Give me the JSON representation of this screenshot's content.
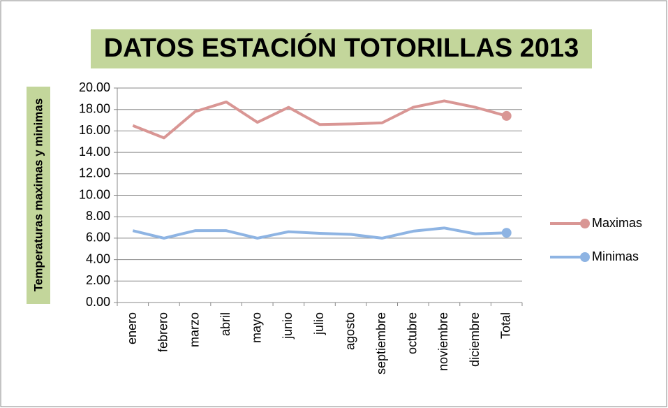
{
  "chart_data": {
    "type": "line",
    "title": "DATOS ESTACIÓN TOTORILLAS 2013",
    "y_label": "Temperaturas maximas y minimas",
    "categories": [
      "enero",
      "febrero",
      "marzo",
      "abril",
      "mayo",
      "junio",
      "julio",
      "agosto",
      "septiembre",
      "octubre",
      "noviembre",
      "diciembre",
      "Total"
    ],
    "series": [
      {
        "name": "Maximas",
        "color": "#d99694",
        "values": [
          16.5,
          15.35,
          17.8,
          18.7,
          16.8,
          18.2,
          16.6,
          16.65,
          16.75,
          18.2,
          18.8,
          18.2,
          17.4
        ]
      },
      {
        "name": "Minimas",
        "color": "#8eb4e3",
        "values": [
          6.7,
          6.0,
          6.7,
          6.7,
          6.0,
          6.6,
          6.45,
          6.35,
          6.0,
          6.65,
          6.95,
          6.4,
          6.5
        ]
      }
    ],
    "ylim": [
      0,
      20
    ],
    "yticks": [
      {
        "value": 0,
        "label": "0.00"
      },
      {
        "value": 2,
        "label": "2.00"
      },
      {
        "value": 4,
        "label": "4.00"
      },
      {
        "value": 6,
        "label": "6.00"
      },
      {
        "value": 8,
        "label": "8.00"
      },
      {
        "value": 10,
        "label": "10.00"
      },
      {
        "value": 12,
        "label": "12.00"
      },
      {
        "value": 14,
        "label": "14.00"
      },
      {
        "value": 16,
        "label": "16.00"
      },
      {
        "value": 18,
        "label": "18.00"
      },
      {
        "value": 20,
        "label": "20.00"
      }
    ],
    "grid": true,
    "legend": "right"
  }
}
